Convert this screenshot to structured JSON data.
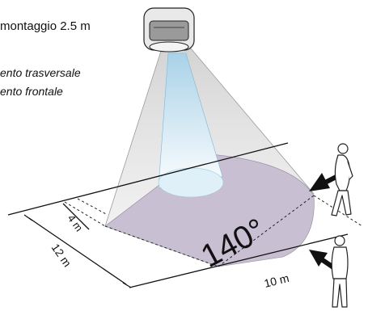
{
  "header": {
    "mount_height_label": "montaggio 2.5 m",
    "legend_lateral": "ento trasversale",
    "legend_frontal": "ento frontale"
  },
  "diagram": {
    "angle_label": "140°",
    "dim_depth_near": "4 m",
    "dim_depth_far": "12 m",
    "dim_width": "10 m"
  },
  "colors": {
    "detection_zone": "#c9bfd3",
    "beam": "#b9d9ea",
    "cone_fill": "#d9d9d9",
    "line": "#111111"
  }
}
